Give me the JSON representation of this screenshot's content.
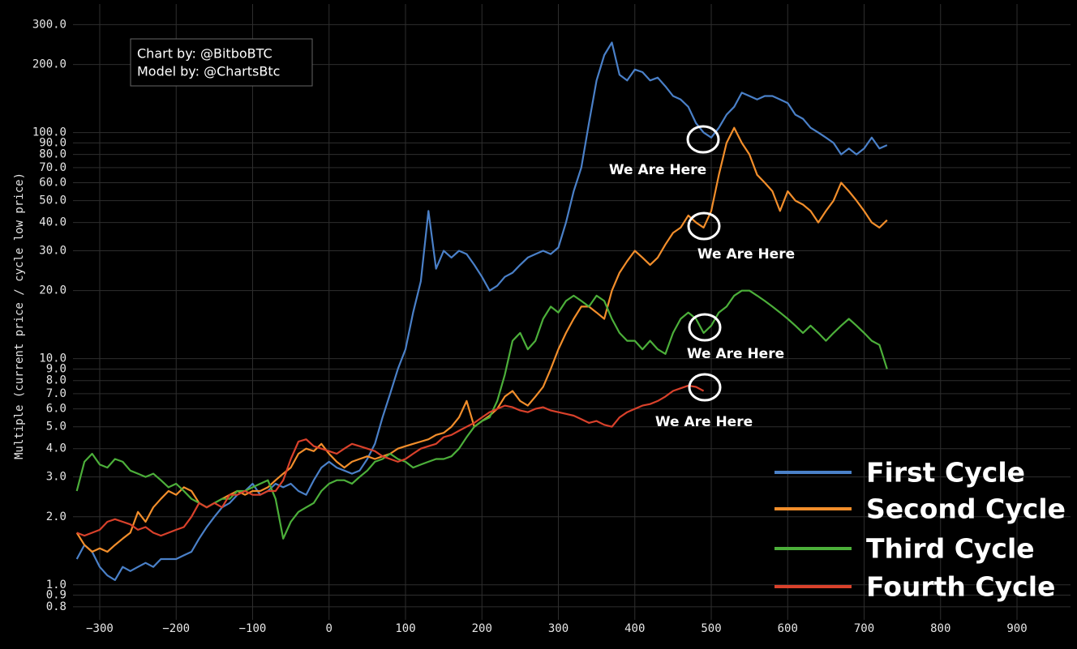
{
  "chart_data": {
    "type": "line",
    "credits": [
      "Chart by: @BitboBTC",
      "Model by: @ChartsBtc"
    ],
    "y_label": "Multiple (current price / cycle low price)",
    "log_y": true,
    "grid": true,
    "legend": "lower right",
    "xlim": [
      -335,
      970
    ],
    "ylim": [
      0.7,
      370
    ],
    "xticks": [
      {
        "value": -300,
        "label": "−300"
      },
      {
        "value": -200,
        "label": "−200"
      },
      {
        "value": -100,
        "label": "−100"
      },
      0,
      100,
      200,
      300,
      400,
      500,
      600,
      700,
      800,
      900
    ],
    "yticks": [
      {
        "value": 0.8,
        "label": "0.8"
      },
      {
        "value": 0.9,
        "label": "0.9"
      },
      {
        "value": 1,
        "label": "1.0"
      },
      {
        "value": 2,
        "label": "2.0"
      },
      {
        "value": 3,
        "label": "3.0"
      },
      {
        "value": 4,
        "label": "4.0"
      },
      {
        "value": 5,
        "label": "5.0"
      },
      {
        "value": 6,
        "label": "6.0"
      },
      {
        "value": 7,
        "label": "7.0"
      },
      {
        "value": 8,
        "label": "8.0"
      },
      {
        "value": 9,
        "label": "9.0"
      },
      {
        "value": 10,
        "label": "10.0"
      },
      {
        "value": 20,
        "label": "20.0"
      },
      {
        "value": 30,
        "label": "30.0"
      },
      {
        "value": 40,
        "label": "40.0"
      },
      {
        "value": 50,
        "label": "50.0"
      },
      {
        "value": 60,
        "label": "60.0"
      },
      {
        "value": 70,
        "label": "70.0"
      },
      {
        "value": 80,
        "label": "80.0"
      },
      {
        "value": 90,
        "label": "90.0"
      },
      {
        "value": 100,
        "label": "100.0"
      },
      {
        "value": 200,
        "label": "200.0"
      },
      {
        "value": 300,
        "label": "300.0"
      }
    ],
    "annotations": [
      "We Are Here",
      "We Are Here",
      "We Are Here",
      "We Are Here"
    ],
    "x": [
      -330,
      -320,
      -310,
      -300,
      -290,
      -280,
      -270,
      -260,
      -250,
      -240,
      -230,
      -220,
      -210,
      -200,
      -190,
      -180,
      -170,
      -160,
      -150,
      -140,
      -130,
      -120,
      -110,
      -100,
      -90,
      -80,
      -70,
      -60,
      -50,
      -40,
      -30,
      -20,
      -10,
      0,
      10,
      20,
      30,
      40,
      50,
      60,
      70,
      80,
      90,
      100,
      110,
      120,
      130,
      140,
      150,
      160,
      170,
      180,
      190,
      200,
      210,
      220,
      230,
      240,
      250,
      260,
      270,
      280,
      290,
      300,
      310,
      320,
      330,
      340,
      350,
      360,
      370,
      380,
      390,
      400,
      410,
      420,
      430,
      440,
      450,
      460,
      470,
      480,
      490,
      500,
      510,
      520,
      530,
      540,
      550,
      560,
      570,
      580,
      590,
      600,
      610,
      620,
      630,
      640,
      650,
      660,
      670,
      680,
      690,
      700,
      710,
      720,
      730
    ],
    "series": [
      {
        "name": "First Cycle",
        "color": "#4a80c8",
        "values": [
          1.3,
          1.5,
          1.4,
          1.2,
          1.1,
          1.05,
          1.2,
          1.15,
          1.2,
          1.25,
          1.2,
          1.3,
          1.3,
          1.3,
          1.35,
          1.4,
          1.6,
          1.8,
          2.0,
          2.2,
          2.3,
          2.5,
          2.6,
          2.8,
          2.5,
          2.6,
          2.8,
          2.7,
          2.8,
          2.6,
          2.5,
          2.9,
          3.3,
          3.5,
          3.3,
          3.2,
          3.1,
          3.2,
          3.6,
          4.2,
          5.5,
          7,
          9,
          11,
          16,
          22,
          45,
          25,
          30,
          28,
          30,
          29,
          26,
          23,
          20,
          21,
          23,
          24,
          26,
          28,
          29,
          30,
          29,
          31,
          40,
          55,
          70,
          110,
          170,
          220,
          250,
          180,
          170,
          190,
          185,
          170,
          175,
          160,
          145,
          140,
          130,
          110,
          100,
          95,
          105,
          120,
          130,
          150,
          145,
          140,
          145,
          145,
          140,
          135,
          120,
          115,
          105,
          100,
          95,
          90,
          80,
          85,
          80,
          85,
          95,
          85,
          88
        ]
      },
      {
        "name": "Second Cycle",
        "color": "#f28e2b",
        "values": [
          1.7,
          1.5,
          1.4,
          1.45,
          1.4,
          1.5,
          1.6,
          1.7,
          2.1,
          1.9,
          2.2,
          2.4,
          2.6,
          2.5,
          2.7,
          2.6,
          2.3,
          2.2,
          2.3,
          2.4,
          2.5,
          2.6,
          2.5,
          2.6,
          2.6,
          2.7,
          2.9,
          3.1,
          3.3,
          3.8,
          4.0,
          3.9,
          4.2,
          3.8,
          3.5,
          3.3,
          3.5,
          3.6,
          3.7,
          3.6,
          3.7,
          3.8,
          4.0,
          4.1,
          4.2,
          4.3,
          4.4,
          4.6,
          4.7,
          5.0,
          5.5,
          6.5,
          5.0,
          5.3,
          5.6,
          6.0,
          6.8,
          7.2,
          6.5,
          6.2,
          6.8,
          7.5,
          9,
          11,
          13,
          15,
          17,
          17,
          16,
          15,
          20,
          24,
          27,
          30,
          28,
          26,
          28,
          32,
          36,
          38,
          43,
          40,
          38,
          45,
          65,
          90,
          105,
          90,
          80,
          65,
          60,
          55,
          45,
          55,
          50,
          48,
          45,
          40,
          45,
          50,
          60,
          55,
          50,
          45,
          40,
          38,
          41
        ]
      },
      {
        "name": "Third Cycle",
        "color": "#4caf3a",
        "values": [
          2.6,
          3.5,
          3.8,
          3.4,
          3.3,
          3.6,
          3.5,
          3.2,
          3.1,
          3.0,
          3.1,
          2.9,
          2.7,
          2.8,
          2.6,
          2.4,
          2.3,
          2.2,
          2.3,
          2.4,
          2.4,
          2.6,
          2.6,
          2.7,
          2.8,
          2.9,
          2.4,
          1.6,
          1.9,
          2.1,
          2.2,
          2.3,
          2.6,
          2.8,
          2.9,
          2.9,
          2.8,
          3.0,
          3.2,
          3.5,
          3.6,
          3.8,
          3.6,
          3.5,
          3.3,
          3.4,
          3.5,
          3.6,
          3.6,
          3.7,
          4.0,
          4.5,
          5.0,
          5.3,
          5.5,
          6.5,
          8.5,
          12,
          13,
          11,
          12,
          15,
          17,
          16,
          18,
          19,
          18,
          17,
          19,
          18,
          15,
          13,
          12,
          12,
          11,
          12,
          11,
          10.5,
          13,
          15,
          16,
          15,
          13,
          14,
          16,
          17,
          19,
          20,
          20,
          19,
          18,
          17,
          16,
          15,
          14,
          13,
          14,
          13,
          12,
          13,
          14,
          15,
          14,
          13,
          12,
          11.5,
          9
        ]
      },
      {
        "name": "Fourth Cycle",
        "color": "#d9412b",
        "values": [
          1.7,
          1.65,
          1.7,
          1.75,
          1.9,
          1.95,
          1.9,
          1.85,
          1.75,
          1.8,
          1.7,
          1.65,
          1.7,
          1.75,
          1.8,
          2.0,
          2.3,
          2.2,
          2.3,
          2.2,
          2.5,
          2.5,
          2.6,
          2.5,
          2.5,
          2.6,
          2.6,
          2.9,
          3.6,
          4.3,
          4.4,
          4.1,
          4.0,
          3.9,
          3.8,
          4.0,
          4.2,
          4.1,
          4.0,
          3.9,
          3.7,
          3.6,
          3.5,
          3.6,
          3.8,
          4.0,
          4.1,
          4.2,
          4.5,
          4.6,
          4.8,
          5.0,
          5.2,
          5.5,
          5.8,
          6.0,
          6.2,
          6.1,
          5.9,
          5.8,
          6.0,
          6.1,
          5.9,
          5.8,
          5.7,
          5.6,
          5.4,
          5.2,
          5.3,
          5.1,
          5.0,
          5.5,
          5.8,
          6.0,
          6.2,
          6.3,
          6.5,
          6.8,
          7.2,
          7.4,
          7.6,
          7.5,
          7.2,
          null,
          null,
          null,
          null,
          null,
          null,
          null,
          null,
          null,
          null,
          null,
          null,
          null,
          null,
          null,
          null,
          null,
          null,
          null,
          null,
          null,
          null,
          null,
          null
        ]
      }
    ]
  }
}
